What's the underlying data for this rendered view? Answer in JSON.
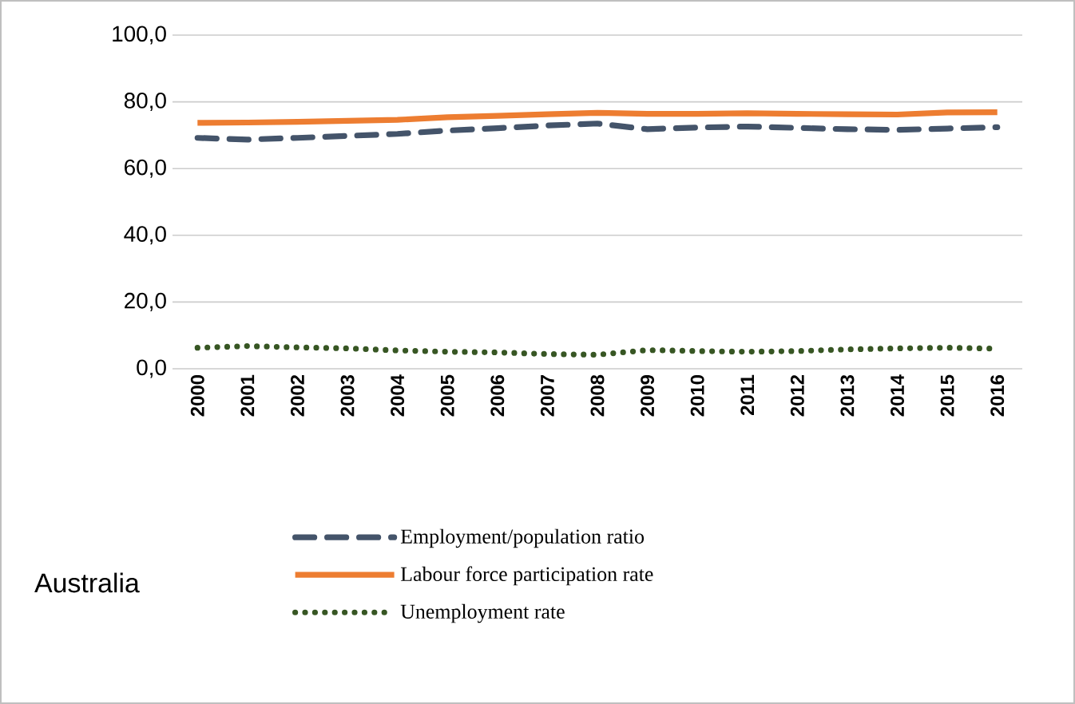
{
  "chart_data": {
    "type": "line",
    "categories": [
      "2000",
      "2001",
      "2002",
      "2003",
      "2004",
      "2005",
      "2006",
      "2007",
      "2008",
      "2009",
      "2010",
      "2011",
      "2012",
      "2013",
      "2014",
      "2015",
      "2016"
    ],
    "series": [
      {
        "name": "Employment/population ratio",
        "color": "#44546a",
        "line_style": "dashed",
        "values": [
          69.2,
          68.7,
          69.2,
          69.8,
          70.4,
          71.4,
          72.1,
          72.9,
          73.5,
          71.8,
          72.3,
          72.6,
          72.2,
          71.8,
          71.6,
          72.0,
          72.4
        ]
      },
      {
        "name": "Labour force participation rate",
        "color": "#ed7d31",
        "line_style": "solid",
        "values": [
          73.7,
          73.8,
          74.0,
          74.3,
          74.6,
          75.4,
          75.8,
          76.3,
          76.7,
          76.4,
          76.4,
          76.6,
          76.4,
          76.3,
          76.2,
          76.8,
          76.9
        ]
      },
      {
        "name": "Unemployment rate",
        "color": "#375623",
        "line_style": "dotted",
        "values": [
          6.3,
          6.8,
          6.4,
          6.1,
          5.5,
          5.1,
          4.9,
          4.4,
          4.2,
          5.6,
          5.3,
          5.1,
          5.3,
          5.8,
          6.1,
          6.3,
          6.0
        ]
      }
    ],
    "ylim": [
      0,
      100
    ],
    "yticks": [
      {
        "value": 0,
        "label": "0,0"
      },
      {
        "value": 20,
        "label": "20,0"
      },
      {
        "value": 40,
        "label": "40,0"
      },
      {
        "value": 60,
        "label": "60,0"
      },
      {
        "value": 80,
        "label": "80,0"
      },
      {
        "value": 100,
        "label": "100,0"
      }
    ],
    "grid": "y",
    "legend": "bottom",
    "marker": "none",
    "annotations": [
      "Australia"
    ]
  }
}
